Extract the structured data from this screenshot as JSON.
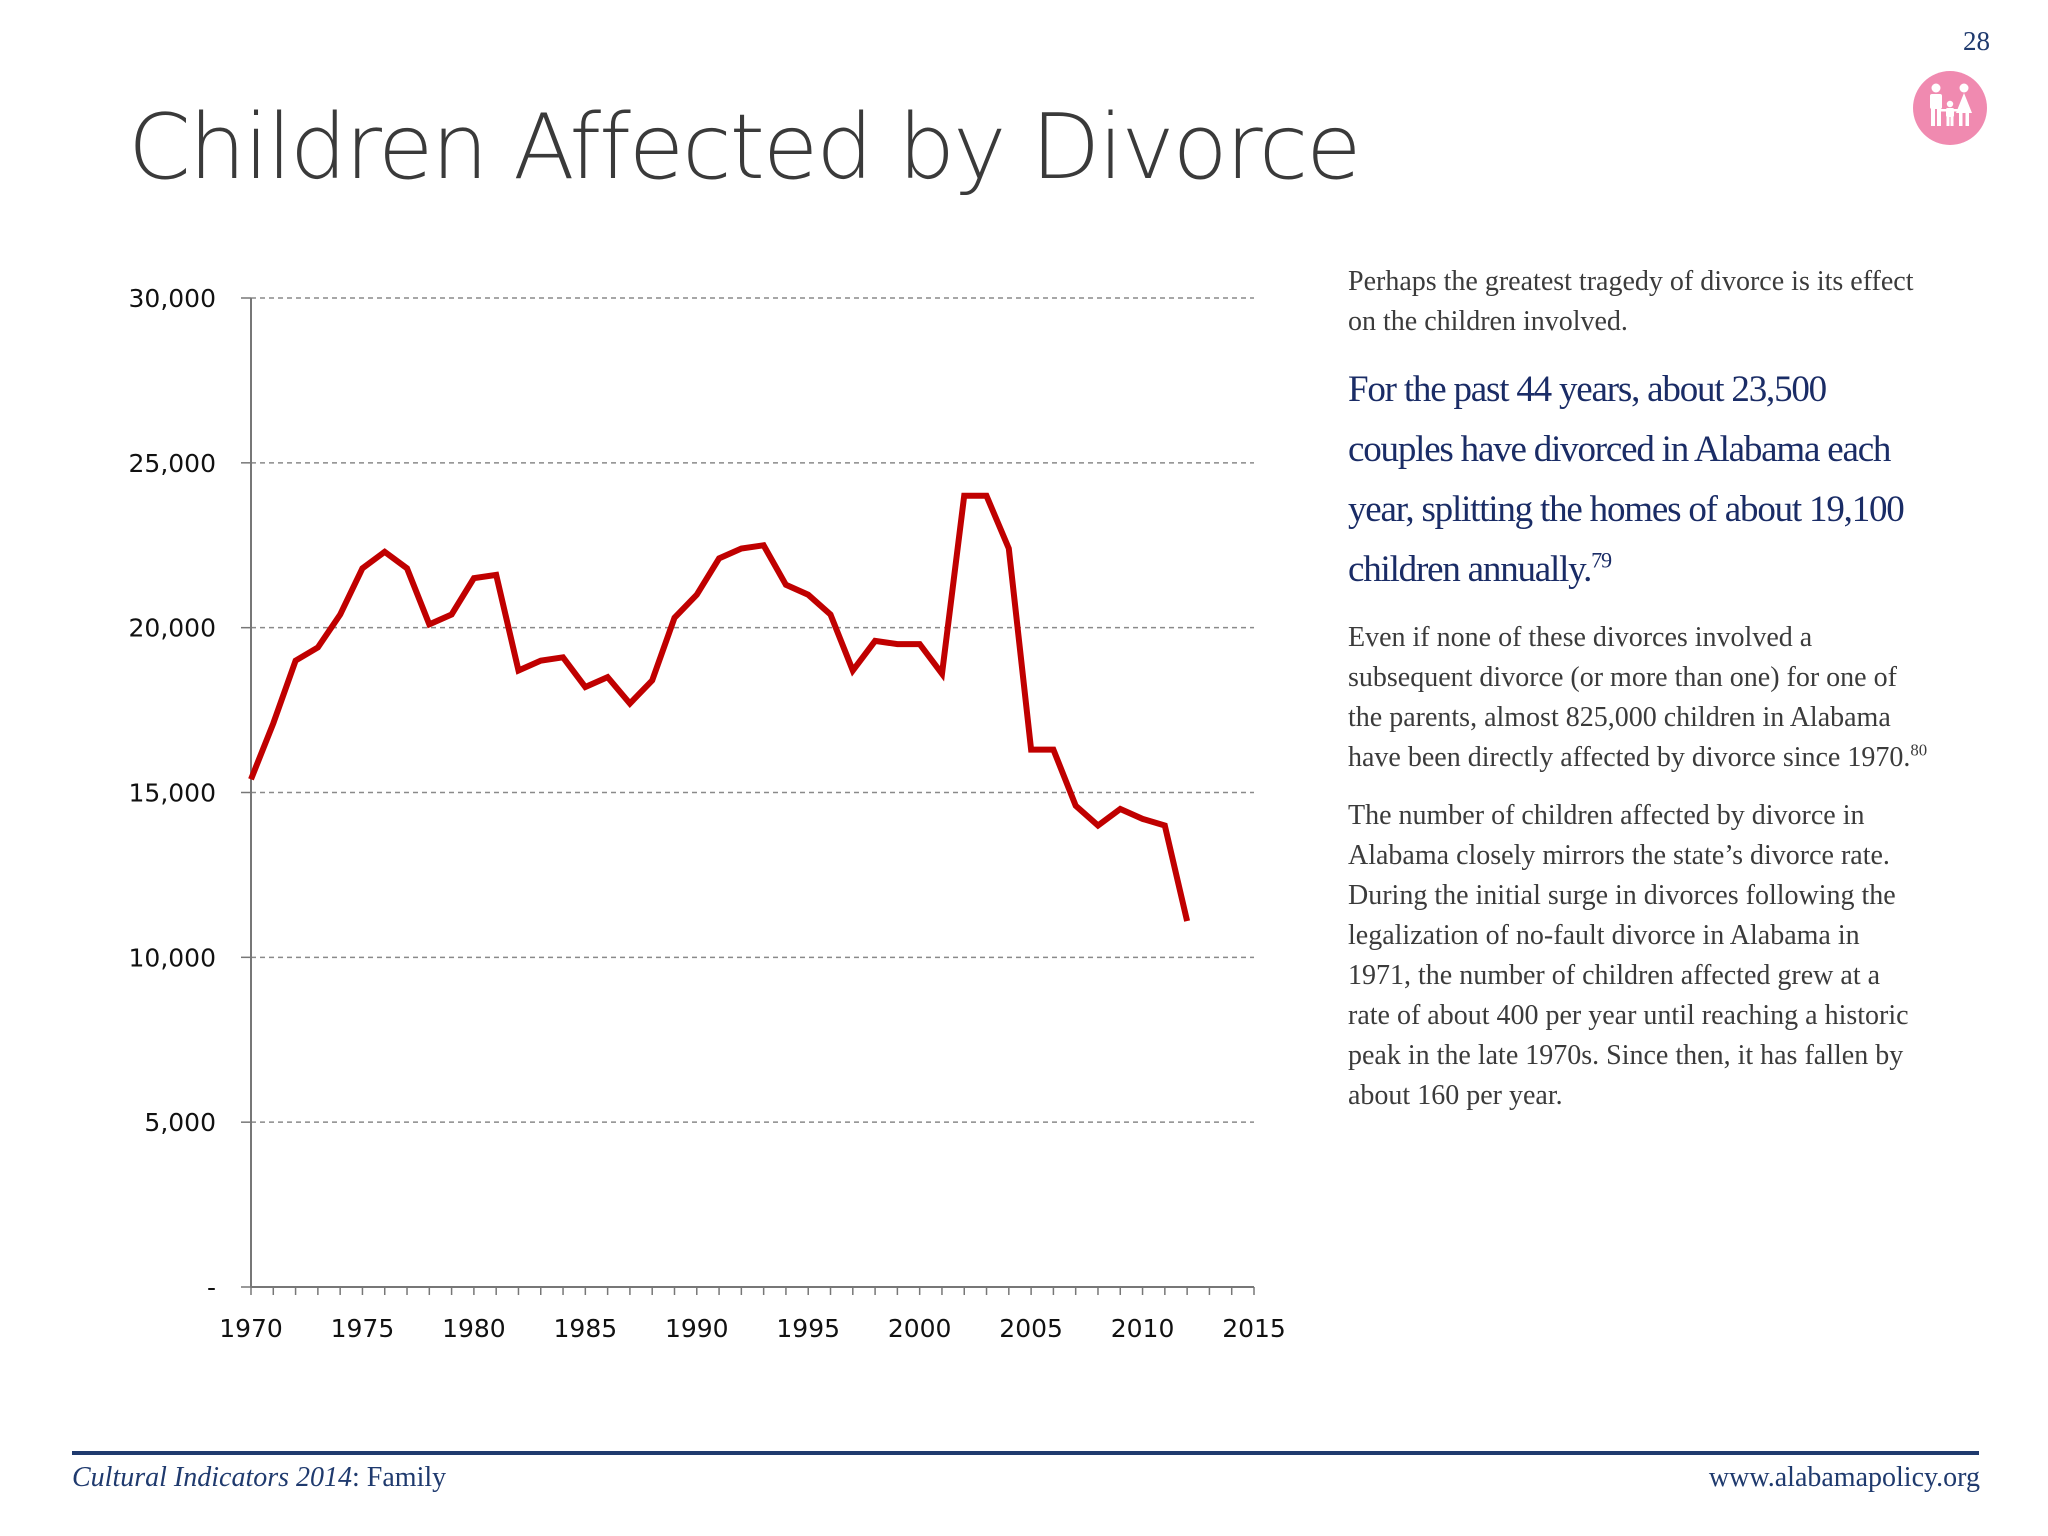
{
  "page": {
    "number": "28",
    "title": "Children Affected by Divorce"
  },
  "text": {
    "intro": "Perhaps the greatest tragedy of divorce is its effect on the children involved.",
    "callout": "For the past 44 years, about 23,500 couples have divorced in Alabama each year, splitting the homes of about 19,100 children annually.",
    "callout_ref": "79",
    "para1": "Even if none of these divorces involved a subsequent divorce (or more than one) for one of the parents, almost 825,000 children in Alabama have been directly affected by divorce since 1970.",
    "para1_ref": "80",
    "para2": "The number of children affected by divorce in Alabama closely mirrors the state’s divorce rate. During the initial surge in divorces following the legalization of no-fault divorce in Alabama in 1971, the number of children affected grew at a rate of about 400 per year until reaching a historic peak in the late 1970s.  Since then, it has fallen by about 160 per year."
  },
  "footer": {
    "left_italic": "Cultural Indicators 2014",
    "left_rest": ": Family",
    "right": "www.alabamapolicy.org"
  },
  "colors": {
    "line": "#c00000",
    "navy": "#1f3a6e",
    "badge": "#f08ab0"
  },
  "icons": {
    "badge": "family-icon"
  },
  "chart_data": {
    "type": "line",
    "title": "",
    "xlabel": "",
    "ylabel": "",
    "xlim": [
      1970,
      2015
    ],
    "ylim": [
      0,
      30000
    ],
    "grid": true,
    "x_ticks": [
      1970,
      1975,
      1980,
      1985,
      1990,
      1995,
      2000,
      2005,
      2010,
      2015
    ],
    "x_tick_labels": [
      "1970",
      "1975",
      "1980",
      "1985",
      "1990",
      "1995",
      "2000",
      "2005",
      "2010",
      "2015"
    ],
    "y_ticks": [
      0,
      5000,
      10000,
      15000,
      20000,
      25000,
      30000
    ],
    "y_tick_labels": [
      "-",
      "5,000",
      "10,000",
      "15,000",
      "20,000",
      "25,000",
      "30,000"
    ],
    "series": [
      {
        "x": [
          1970,
          1971,
          1972,
          1973,
          1974,
          1975,
          1976,
          1977,
          1978,
          1979,
          1980,
          1981,
          1982,
          1983,
          1984,
          1985,
          1986,
          1987,
          1988,
          1989,
          1990,
          1991,
          1992,
          1993,
          1994,
          1995,
          1996,
          1997,
          1998,
          1999,
          2000,
          2001,
          2002,
          2003,
          2004,
          2005,
          2006,
          2007,
          2008,
          2009,
          2010,
          2011,
          2012
        ],
        "y": [
          15400,
          17100,
          19000,
          19400,
          20400,
          21800,
          22300,
          21800,
          20100,
          20400,
          21500,
          21600,
          18700,
          19000,
          19100,
          18200,
          18500,
          17700,
          18400,
          20300,
          21000,
          22100,
          22400,
          22500,
          21300,
          21000,
          20400,
          18700,
          19600,
          19500,
          19500,
          18600,
          24000,
          24000,
          22400,
          16300,
          16300,
          14600,
          14000,
          14500,
          14200,
          14000,
          11100
        ]
      }
    ]
  }
}
